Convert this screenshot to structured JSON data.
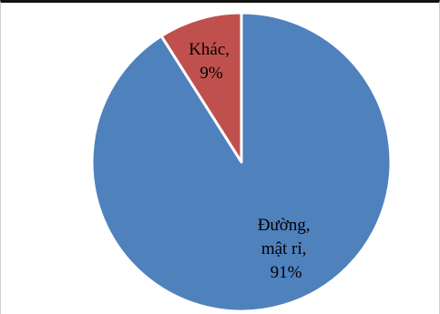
{
  "chart_data": {
    "type": "pie",
    "slices": [
      {
        "name": "Đường, mật rỉ",
        "value": 91,
        "label_lines": [
          "Đường,",
          "mật rỉ,",
          "91%"
        ],
        "color": "#4F81BD"
      },
      {
        "name": "Khác",
        "value": 9,
        "label_lines": [
          "Khác,",
          "9%"
        ],
        "color": "#C0504D"
      }
    ],
    "title": "",
    "legend": "none",
    "separator_color": "#ffffff"
  }
}
